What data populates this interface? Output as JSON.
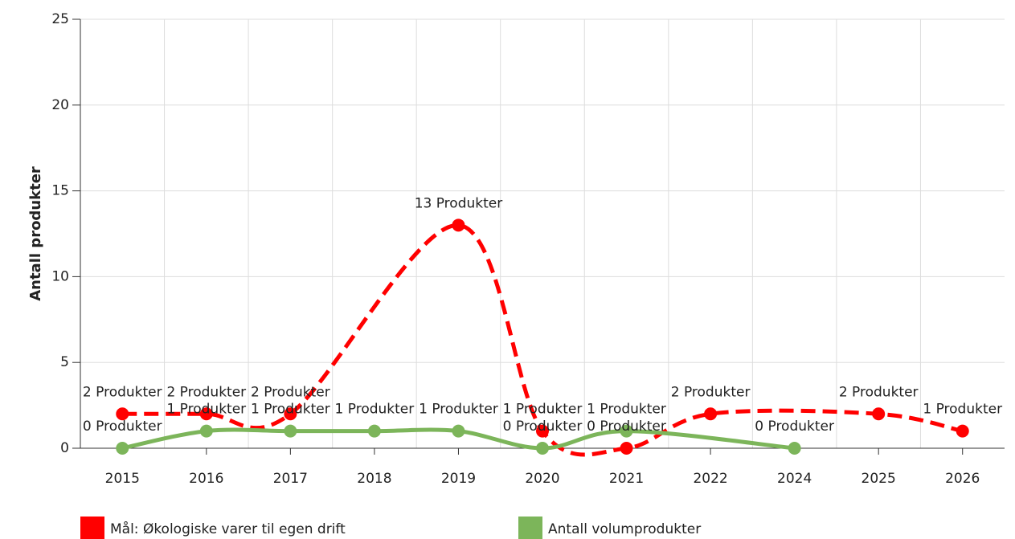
{
  "chart_data": {
    "type": "line",
    "y_label": "Antall produkter",
    "categories": [
      "2015",
      "2016",
      "2017",
      "2018",
      "2019",
      "2020",
      "2021",
      "2022",
      "2024",
      "2025",
      "2026"
    ],
    "ylim": [
      0,
      25
    ],
    "yticks": [
      0,
      5,
      10,
      15,
      20,
      25
    ],
    "grid": true,
    "smooth": true,
    "connect_nulls": true,
    "legend": "bottom",
    "series": [
      {
        "name": "Mål: Økologiske varer til egen drift",
        "color": "#ff0000",
        "dashed": true,
        "values": [
          2,
          2,
          2,
          null,
          13,
          1,
          0,
          2,
          null,
          2,
          1
        ],
        "value_labels": [
          "2 Produkter",
          "2 Produkter",
          "2 Produkter",
          null,
          "13 Produkter",
          "1 Produkter",
          "0 Produkter",
          "2 Produkter",
          null,
          "2 Produkter",
          "1 Produkter"
        ]
      },
      {
        "name": "Antall volumprodukter",
        "color": "#7cb55a",
        "dashed": false,
        "values": [
          0,
          1,
          1,
          1,
          1,
          0,
          1,
          null,
          0,
          null,
          null
        ],
        "value_labels": [
          "0 Produkter",
          "1 Produkter",
          "1 Produkter",
          "1 Produkter",
          "1 Produkter",
          "0 Produkter",
          "1 Produkter",
          null,
          "0 Produkter",
          null,
          null
        ]
      }
    ]
  }
}
